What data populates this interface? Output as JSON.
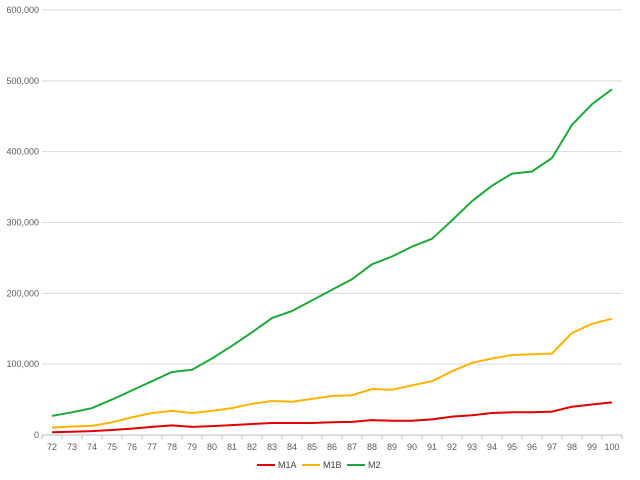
{
  "chart_data": {
    "type": "line",
    "title": "",
    "xlabel": "",
    "ylabel": "",
    "categories": [
      "72",
      "73",
      "74",
      "75",
      "76",
      "77",
      "78",
      "79",
      "80",
      "81",
      "82",
      "83",
      "84",
      "85",
      "86",
      "87",
      "88",
      "89",
      "90",
      "91",
      "92",
      "93",
      "94",
      "95",
      "96",
      "97",
      "98",
      "99",
      "100"
    ],
    "y_ticks": [
      0,
      100000,
      200000,
      300000,
      400000,
      500000,
      600000
    ],
    "y_tick_labels": [
      "0",
      "100,000",
      "200,000",
      "300,000",
      "400,000",
      "500,000",
      "600,000"
    ],
    "ylim": [
      0,
      600000
    ],
    "grid": true,
    "legend_position": "bottom",
    "series": [
      {
        "name": "M1A",
        "color": "#e00000",
        "values": [
          4000,
          4500,
          5500,
          7000,
          9000,
          11500,
          13500,
          11500,
          12500,
          14000,
          15500,
          17000,
          17000,
          17000,
          18000,
          18500,
          21000,
          20000,
          20000,
          22000,
          26000,
          28000,
          31000,
          32000,
          32000,
          33000,
          40000,
          43000,
          46000
        ]
      },
      {
        "name": "M1B",
        "color": "#ffb300",
        "values": [
          10500,
          12000,
          13000,
          18000,
          25000,
          31000,
          34000,
          31000,
          34000,
          38000,
          44000,
          48000,
          47000,
          51000,
          55000,
          56000,
          65000,
          64000,
          70000,
          76000,
          90000,
          102000,
          108000,
          113000,
          114000,
          115000,
          144000,
          157000,
          164000
        ]
      },
      {
        "name": "M2",
        "color": "#1fa83a",
        "values": [
          27000,
          32000,
          38000,
          50000,
          63000,
          76000,
          89000,
          92000,
          108000,
          126000,
          145000,
          165000,
          175000,
          190000,
          205000,
          220000,
          241000,
          252000,
          266000,
          277000,
          303000,
          330000,
          352000,
          369000,
          372000,
          391000,
          438000,
          467000,
          488000
        ]
      }
    ]
  }
}
